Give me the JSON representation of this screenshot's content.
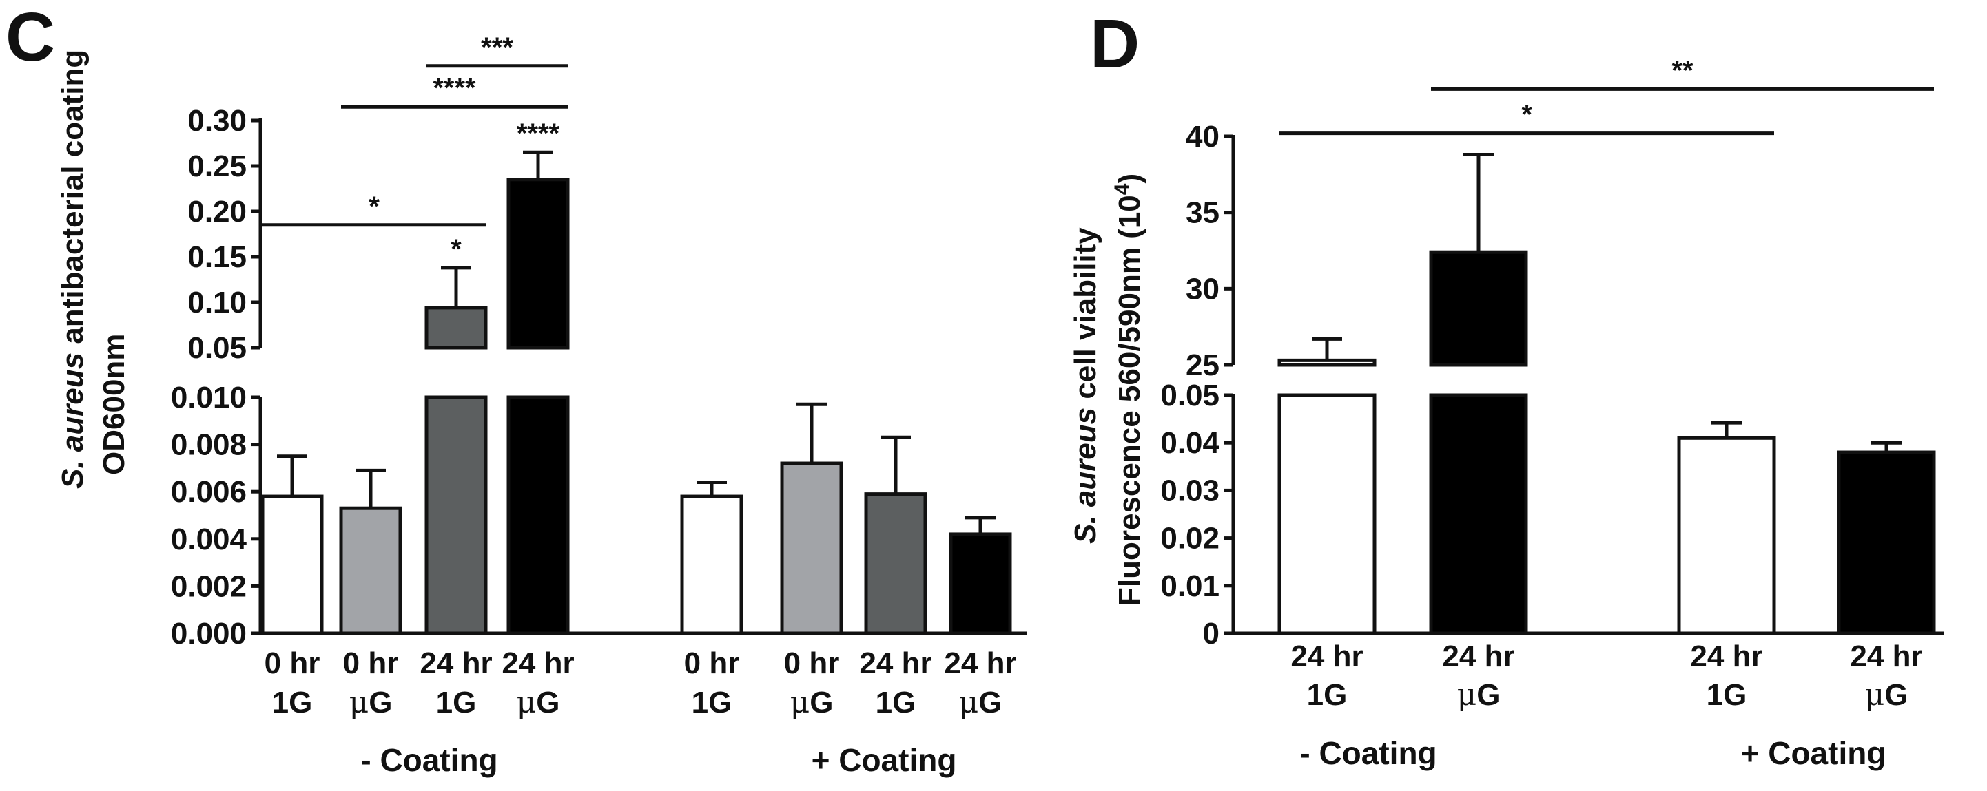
{
  "chart_data": [
    {
      "panel": "C",
      "type": "bar",
      "y_axis_break": true,
      "ylabel_lines": [
        "S. aureus antibacterial coating",
        "OD600nm"
      ],
      "ylabel_italic": "S. aureus",
      "ylabel_rest": " antibacterial coating",
      "ylabel_line2": "OD600nm",
      "lower_axis": {
        "range": [
          0,
          0.01
        ],
        "ticks": [
          "0.000",
          "0.002",
          "0.004",
          "0.006",
          "0.008",
          "0.010"
        ]
      },
      "upper_axis": {
        "range": [
          0.05,
          0.3
        ],
        "ticks": [
          "0.05",
          "0.10",
          "0.15",
          "0.20",
          "0.25",
          "0.30"
        ]
      },
      "groups": [
        {
          "label": "- Coating"
        },
        {
          "label": "+ Coating"
        }
      ],
      "bars": [
        {
          "time": "0 hr",
          "gravity": "1G",
          "group": 0,
          "value": 0.0058,
          "error": 0.0017,
          "color": "#ffffff"
        },
        {
          "time": "0 hr",
          "gravity": "μG",
          "group": 0,
          "value": 0.0053,
          "error": 0.0016,
          "color": "#a2a4a8"
        },
        {
          "time": "24 hr",
          "gravity": "1G",
          "group": 0,
          "value": 0.094,
          "error": 0.044,
          "color": "#5c5f60",
          "star": "*"
        },
        {
          "time": "24 hr",
          "gravity": "μG",
          "group": 0,
          "value": 0.235,
          "error": 0.03,
          "color": "#000000",
          "star": "****"
        },
        {
          "time": "0 hr",
          "gravity": "1G",
          "group": 1,
          "value": 0.0058,
          "error": 0.0006,
          "color": "#ffffff"
        },
        {
          "time": "0 hr",
          "gravity": "μG",
          "group": 1,
          "value": 0.0072,
          "error": 0.0025,
          "color": "#a2a4a8"
        },
        {
          "time": "24 hr",
          "gravity": "1G",
          "group": 1,
          "value": 0.0059,
          "error": 0.0024,
          "color": "#5c5f60"
        },
        {
          "time": "24 hr",
          "gravity": "μG",
          "group": 1,
          "value": 0.0042,
          "error": 0.0007,
          "color": "#000000"
        }
      ],
      "significance": [
        {
          "label": "*",
          "from": 0,
          "to": 2,
          "level": 0.185
        },
        {
          "label": "****",
          "from": 1,
          "to": 3,
          "level": 0.315
        },
        {
          "label": "***",
          "from": 2,
          "to": 3,
          "level": 0.36
        }
      ]
    },
    {
      "panel": "D",
      "type": "bar",
      "y_axis_break": true,
      "ylabel_italic": "S. aureus",
      "ylabel_rest": " cell viability",
      "ylabel_line2_base": "Fluorescence 560/590nm (10",
      "ylabel_line2_sup": "4",
      "ylabel_line2_end": ")",
      "lower_axis": {
        "range": [
          0,
          0.05
        ],
        "ticks": [
          "0",
          "0.01",
          "0.02",
          "0.03",
          "0.04",
          "0.05"
        ]
      },
      "upper_axis": {
        "range": [
          25,
          40
        ],
        "ticks": [
          "25",
          "30",
          "35",
          "40"
        ]
      },
      "groups": [
        {
          "label": "- Coating"
        },
        {
          "label": "+ Coating"
        }
      ],
      "bars": [
        {
          "time": "24 hr",
          "gravity": "1G",
          "group": 0,
          "value": 25.3,
          "error": 1.4,
          "color": "#ffffff"
        },
        {
          "time": "24 hr",
          "gravity": "μG",
          "group": 0,
          "value": 32.4,
          "error": 6.4,
          "color": "#000000"
        },
        {
          "time": "24 hr",
          "gravity": "1G",
          "group": 1,
          "value": 0.041,
          "error": 0.0032,
          "color": "#ffffff"
        },
        {
          "time": "24 hr",
          "gravity": "μG",
          "group": 1,
          "value": 0.038,
          "error": 0.002,
          "color": "#000000"
        }
      ],
      "significance": [
        {
          "label": "*",
          "from": 0,
          "to": 2,
          "level": 40.2
        },
        {
          "label": "**",
          "from": 1,
          "to": 3,
          "level": 43.1
        }
      ]
    }
  ]
}
